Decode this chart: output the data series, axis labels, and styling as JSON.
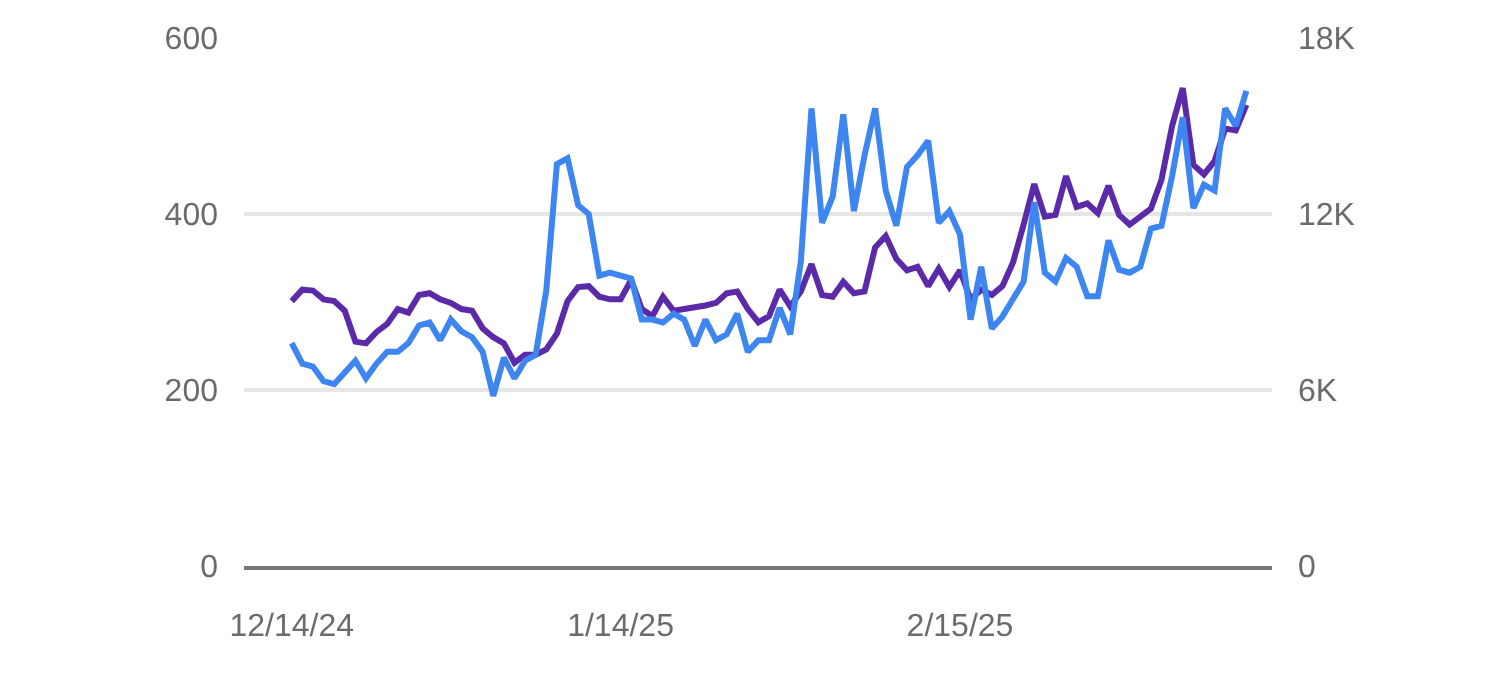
{
  "chart_data": {
    "type": "line",
    "x": [
      "2024-12-14",
      "2024-12-15",
      "2024-12-16",
      "2024-12-17",
      "2024-12-18",
      "2024-12-19",
      "2024-12-20",
      "2024-12-21",
      "2024-12-22",
      "2024-12-23",
      "2024-12-24",
      "2024-12-25",
      "2024-12-26",
      "2024-12-27",
      "2024-12-28",
      "2024-12-29",
      "2024-12-30",
      "2024-12-31",
      "2025-01-01",
      "2025-01-02",
      "2025-01-03",
      "2025-01-04",
      "2025-01-05",
      "2025-01-06",
      "2025-01-07",
      "2025-01-08",
      "2025-01-09",
      "2025-01-10",
      "2025-01-11",
      "2025-01-12",
      "2025-01-13",
      "2025-01-14",
      "2025-01-15",
      "2025-01-16",
      "2025-01-17",
      "2025-01-18",
      "2025-01-19",
      "2025-01-20",
      "2025-01-21",
      "2025-01-22",
      "2025-01-23",
      "2025-01-24",
      "2025-01-25",
      "2025-01-26",
      "2025-01-27",
      "2025-01-28",
      "2025-01-29",
      "2025-01-30",
      "2025-01-31",
      "2025-02-01",
      "2025-02-02",
      "2025-02-03",
      "2025-02-04",
      "2025-02-05",
      "2025-02-06",
      "2025-02-07",
      "2025-02-08",
      "2025-02-09",
      "2025-02-10",
      "2025-02-11",
      "2025-02-12",
      "2025-02-13",
      "2025-02-14",
      "2025-02-15",
      "2025-02-16",
      "2025-02-17",
      "2025-02-18",
      "2025-02-19",
      "2025-02-20",
      "2025-02-21",
      "2025-02-22",
      "2025-02-23",
      "2025-02-24",
      "2025-02-25",
      "2025-02-26",
      "2025-02-27",
      "2025-02-28",
      "2025-03-01",
      "2025-03-02",
      "2025-03-03",
      "2025-03-04",
      "2025-03-05",
      "2025-03-06",
      "2025-03-07",
      "2025-03-08",
      "2025-03-09",
      "2025-03-10",
      "2025-03-11",
      "2025-03-12",
      "2025-03-13",
      "2025-03-14"
    ],
    "series": [
      {
        "color": "#5b2aa8",
        "values": [
          301,
          314,
          313,
          303,
          301,
          290,
          255,
          253,
          266,
          275,
          292,
          288,
          308,
          310,
          303,
          299,
          292,
          290,
          270,
          260,
          253,
          231,
          240,
          240,
          246,
          264,
          301,
          317,
          318,
          306,
          303,
          303,
          325,
          292,
          284,
          306,
          290,
          292,
          294,
          296,
          299,
          310,
          312,
          292,
          277,
          284,
          314,
          295,
          312,
          343,
          308,
          306,
          323,
          310,
          312,
          362,
          375,
          349,
          336,
          340,
          318,
          338,
          317,
          336,
          303,
          314,
          308,
          318,
          345,
          388,
          434,
          397,
          399,
          443,
          408,
          412,
          401,
          432,
          399,
          388,
          397,
          406,
          439,
          500,
          543,
          456,
          445,
          460,
          497,
          495,
          524
        ]
      },
      {
        "color": "#3d85f0",
        "axis": "y2",
        "values": [
          7600,
          6900,
          6800,
          6300,
          6200,
          6600,
          7000,
          6400,
          6900,
          7300,
          7300,
          7600,
          8200,
          8300,
          7700,
          8400,
          8000,
          7800,
          7300,
          5800,
          7100,
          6400,
          7000,
          7200,
          9400,
          13700,
          13900,
          12300,
          12000,
          9900,
          10000,
          9900,
          9800,
          8400,
          8400,
          8300,
          8600,
          8400,
          7500,
          8400,
          7700,
          7900,
          8600,
          7300,
          7700,
          7700,
          8800,
          7900,
          10400,
          15600,
          11700,
          12600,
          15400,
          12100,
          14000,
          15600,
          12800,
          11600,
          13600,
          14000,
          14500,
          11700,
          12100,
          11300,
          8400,
          10200,
          8100,
          8500,
          9100,
          9700,
          12400,
          10000,
          9700,
          10500,
          10200,
          9200,
          9200,
          11100,
          10100,
          10000,
          10200,
          11500,
          11600,
          13300,
          15300,
          12200,
          13000,
          12800,
          15600,
          15000,
          16200
        ]
      }
    ],
    "xlim": [
      "2024-12-09T12:00",
      "2025-03-16T10:00"
    ],
    "xticks": [
      {
        "value": "2024-12-14",
        "label": "12/14/24"
      },
      {
        "value": "2025-01-14",
        "label": "1/14/25"
      },
      {
        "value": "2025-02-15",
        "label": "2/15/25"
      }
    ],
    "ylim": [
      0,
      600
    ],
    "yticks": [
      0,
      200,
      400,
      600
    ],
    "y2lim": [
      0,
      18000
    ],
    "y2ticks": [
      0,
      {
        "value": 6000,
        "label": "6K"
      },
      {
        "value": 12000,
        "label": "12K"
      },
      {
        "value": 18000,
        "label": "18K"
      }
    ],
    "grid": "y",
    "marker": "none",
    "line_style": "solid"
  }
}
